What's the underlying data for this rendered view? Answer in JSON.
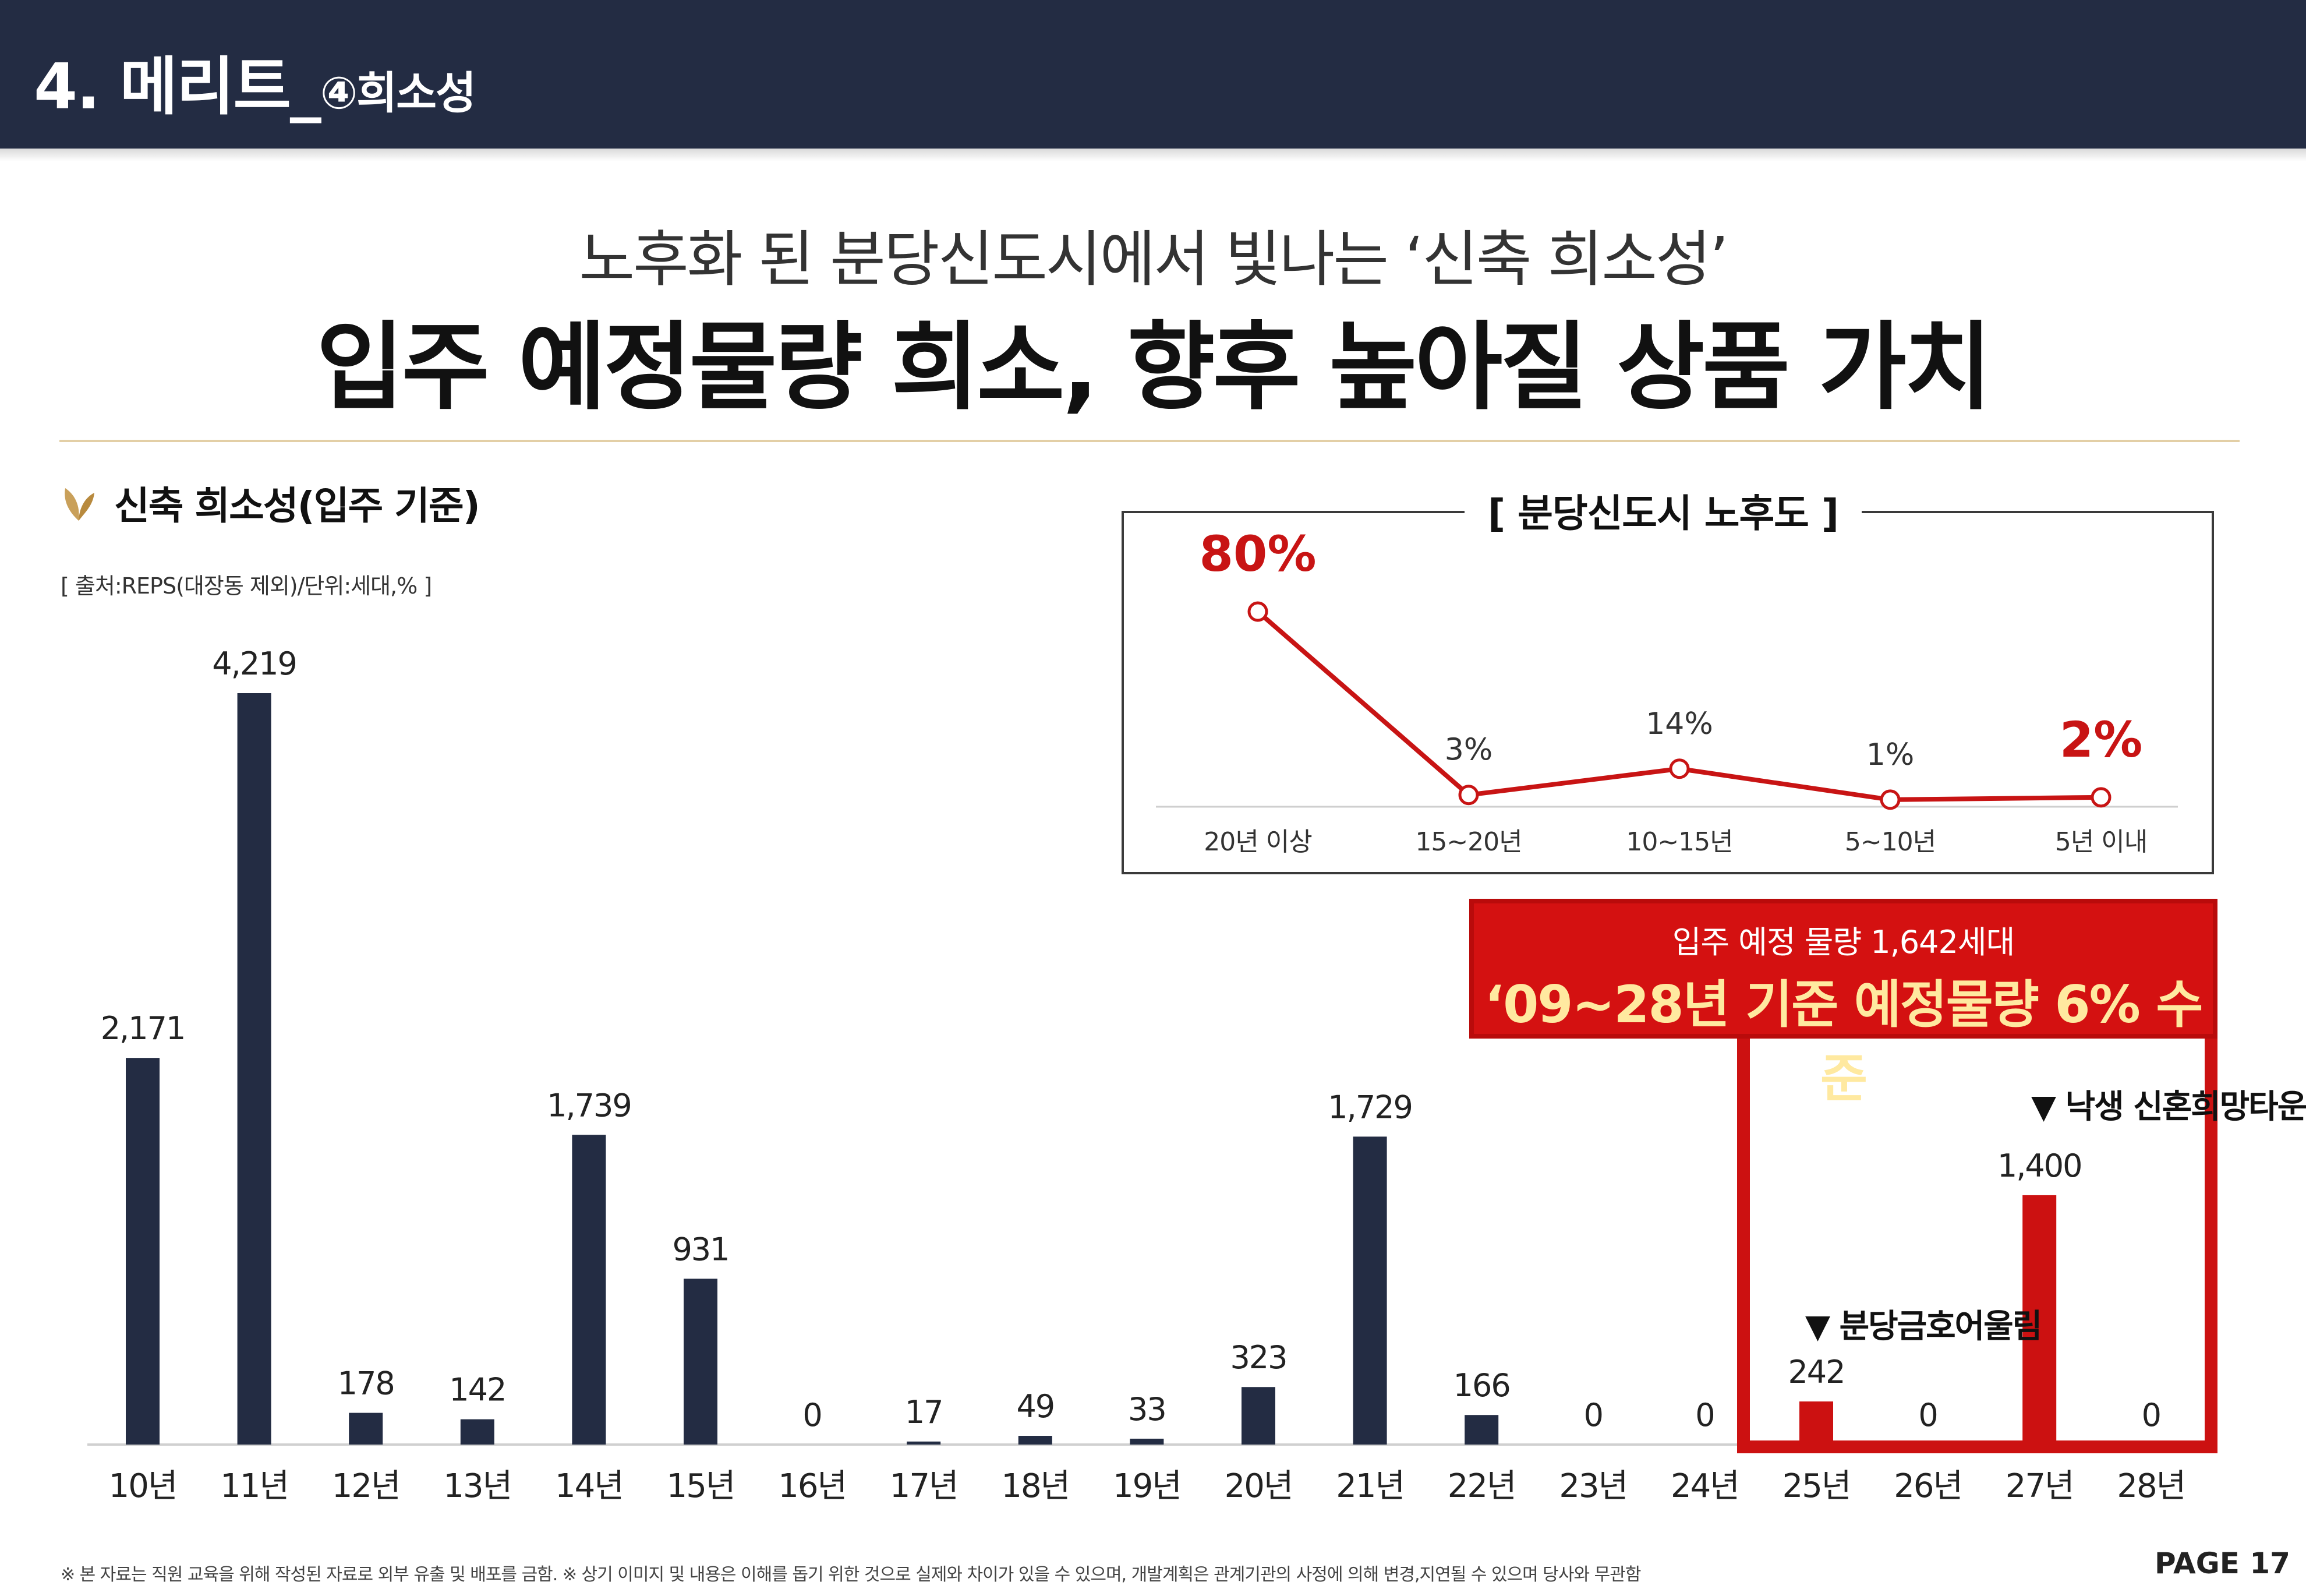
{
  "header": {
    "title_main": "4. 메리트_",
    "title_sub": "④희소성"
  },
  "subtitle": "노후화 된 분당신도시에서 빛나는 ‘신축 희소성’",
  "headline": "입주 예정물량 희소, 향후 높아질 상품 가치",
  "section": {
    "title": "신축 희소성(입주 기준)",
    "source": "[ 출처:REPS(대장동 제외)/단위:세대,% ]",
    "icon": "wheat-icon"
  },
  "inset": {
    "title": "[ 분당신도시 노후도 ]"
  },
  "callout": {
    "line1": "입주 예정 물량 1,642세대",
    "line2": "‘09~28년 기준 예정물량 6% 수준"
  },
  "annotations": {
    "a25": "▼ 분당금호어울림",
    "a27": "▼ 낙생 신혼희망타운"
  },
  "footer": {
    "note": "※ 본 자료는 직원 교육을 위해 작성된 자료로 외부 유출 및 배포를 금함. ※ 상기 이미지 및 내용은 이해를 돕기 위한 것으로 실제와 차이가 있을 수 있으며, 개발계획은 관계기관의 사정에 의해 변경,지연될 수 있으며 당사와 무관함",
    "page": "PAGE  17"
  },
  "colors": {
    "bar": "#232c43",
    "bar_highlight": "#cc1111",
    "line": "#c81414",
    "gold": "#c9a05a"
  },
  "chart_data": [
    {
      "type": "bar",
      "title": "신축 희소성(입주 기준)",
      "categories": [
        "10년",
        "11년",
        "12년",
        "13년",
        "14년",
        "15년",
        "16년",
        "17년",
        "18년",
        "19년",
        "20년",
        "21년",
        "22년",
        "23년",
        "24년",
        "25년",
        "26년",
        "27년",
        "28년"
      ],
      "values": [
        2171,
        4219,
        178,
        142,
        1739,
        931,
        0,
        17,
        49,
        33,
        323,
        1729,
        166,
        0,
        0,
        242,
        0,
        1400,
        0
      ],
      "value_labels": [
        "2,171",
        "4,219",
        "178",
        "142",
        "1,739",
        "931",
        "0",
        "17",
        "49",
        "33",
        "323",
        "1,729",
        "166",
        "0",
        "0",
        "242",
        "0",
        "1,400",
        "0"
      ],
      "highlight_categories": [
        "25년",
        "26년",
        "27년",
        "28년"
      ],
      "ylim": [
        0,
        4219
      ],
      "grid": false
    },
    {
      "type": "line",
      "title": "[ 분당신도시 노후도 ]",
      "categories": [
        "20년 이상",
        "15~20년",
        "10~15년",
        "5~10년",
        "5년 이내"
      ],
      "values": [
        80,
        3,
        14,
        1,
        2
      ],
      "value_labels": [
        "80%",
        "3%",
        "14%",
        "1%",
        "2%"
      ],
      "emphasized_labels": [
        "80%",
        "2%"
      ],
      "ylim": [
        0,
        80
      ]
    }
  ]
}
